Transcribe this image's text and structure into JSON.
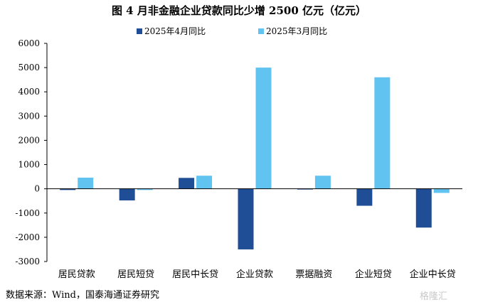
{
  "title": "图 4 月非金融企业贷款同比少增 2500 亿元（亿元）",
  "source": "数据来源：Wind，国泰海通证券研究",
  "watermark": "格隆汇",
  "chart_data": {
    "type": "bar",
    "categories": [
      "居民贷款",
      "居民短贷",
      "居民中长贷",
      "企业贷款",
      "票据融资",
      "企业短贷",
      "企业中长贷"
    ],
    "series": [
      {
        "name": "2025年4月同比",
        "color": "#1f4e96",
        "values": [
          -50,
          -480,
          450,
          -2500,
          -30,
          -700,
          -1600
        ]
      },
      {
        "name": "2025年3月同比",
        "color": "#61c3f0",
        "values": [
          460,
          -50,
          540,
          5000,
          540,
          4600,
          -170
        ]
      }
    ],
    "ylim": [
      -3000,
      6000
    ],
    "yticks": [
      -3000,
      -2000,
      -1000,
      0,
      1000,
      2000,
      3000,
      4000,
      5000,
      6000
    ],
    "legend_position": "top",
    "grid": false
  }
}
